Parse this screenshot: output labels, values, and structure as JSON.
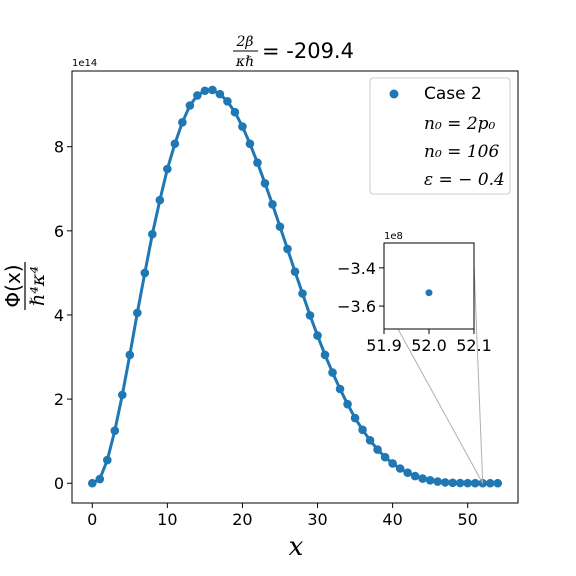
{
  "chart_data": {
    "type": "scatter",
    "title_prefix": "2β",
    "title_denominator": "κℏ",
    "title_value": "= -209.4",
    "xlabel": "x",
    "ylabel_numerator": "Φ(x)",
    "ylabel_denominator": "ℏ⁴κ⁴",
    "y_offset_label": "1e14",
    "xlim": [
      -2.7,
      56.7
    ],
    "ylim": [
      -0.47,
      9.8
    ],
    "x_ticks": [
      0,
      10,
      20,
      30,
      40,
      50
    ],
    "x_tick_labels": [
      "0",
      "10",
      "20",
      "30",
      "40",
      "50"
    ],
    "y_ticks": [
      0,
      2,
      4,
      6,
      8
    ],
    "y_tick_labels": [
      "0",
      "2",
      "4",
      "6",
      "8"
    ],
    "grid": false,
    "legend_position": "upper-right",
    "legend": {
      "series_name": "Case 2",
      "lines": [
        "n₀ = 2p₀",
        "n₀ = 106",
        "ε = − 0.4"
      ]
    },
    "colors": {
      "series": "#1f77b4",
      "connector": "#b0b0b0",
      "axis": "#000000"
    },
    "series": [
      {
        "name": "Case 2",
        "x": [
          0,
          1,
          2,
          3,
          4,
          5,
          6,
          7,
          8,
          9,
          10,
          11,
          12,
          13,
          14,
          15,
          16,
          17,
          18,
          19,
          20,
          21,
          22,
          23,
          24,
          25,
          26,
          27,
          28,
          29,
          30,
          31,
          32,
          33,
          34,
          35,
          36,
          37,
          38,
          39,
          40,
          41,
          42,
          43,
          44,
          45,
          46,
          47,
          48,
          49,
          50,
          51,
          52,
          53,
          54
        ],
        "y": [
          0.0,
          0.1,
          0.55,
          1.25,
          2.1,
          3.05,
          4.05,
          5.0,
          5.92,
          6.73,
          7.47,
          8.07,
          8.58,
          8.98,
          9.22,
          9.33,
          9.35,
          9.25,
          9.08,
          8.82,
          8.48,
          8.07,
          7.62,
          7.13,
          6.63,
          6.1,
          5.57,
          5.03,
          4.51,
          3.99,
          3.51,
          3.05,
          2.63,
          2.24,
          1.88,
          1.55,
          1.27,
          1.02,
          0.8,
          0.62,
          0.47,
          0.35,
          0.25,
          0.17,
          0.11,
          0.07,
          0.04,
          0.02,
          0.01,
          0.005,
          0.002,
          0.0005,
          0.0,
          0.0,
          0.0
        ]
      }
    ],
    "inset": {
      "xlim": [
        51.9,
        52.1
      ],
      "ylim": [
        -3.72,
        -3.27
      ],
      "x_ticks": [
        51.9,
        52.0,
        52.1
      ],
      "x_tick_labels": [
        "51.9",
        "52.0",
        "52.1"
      ],
      "y_ticks": [
        -3.6,
        -3.4
      ],
      "y_tick_labels": [
        "−3.6",
        "−3.4"
      ],
      "y_offset_label": "1e8",
      "point": {
        "x": 52.0,
        "y": -3.53
      }
    }
  }
}
